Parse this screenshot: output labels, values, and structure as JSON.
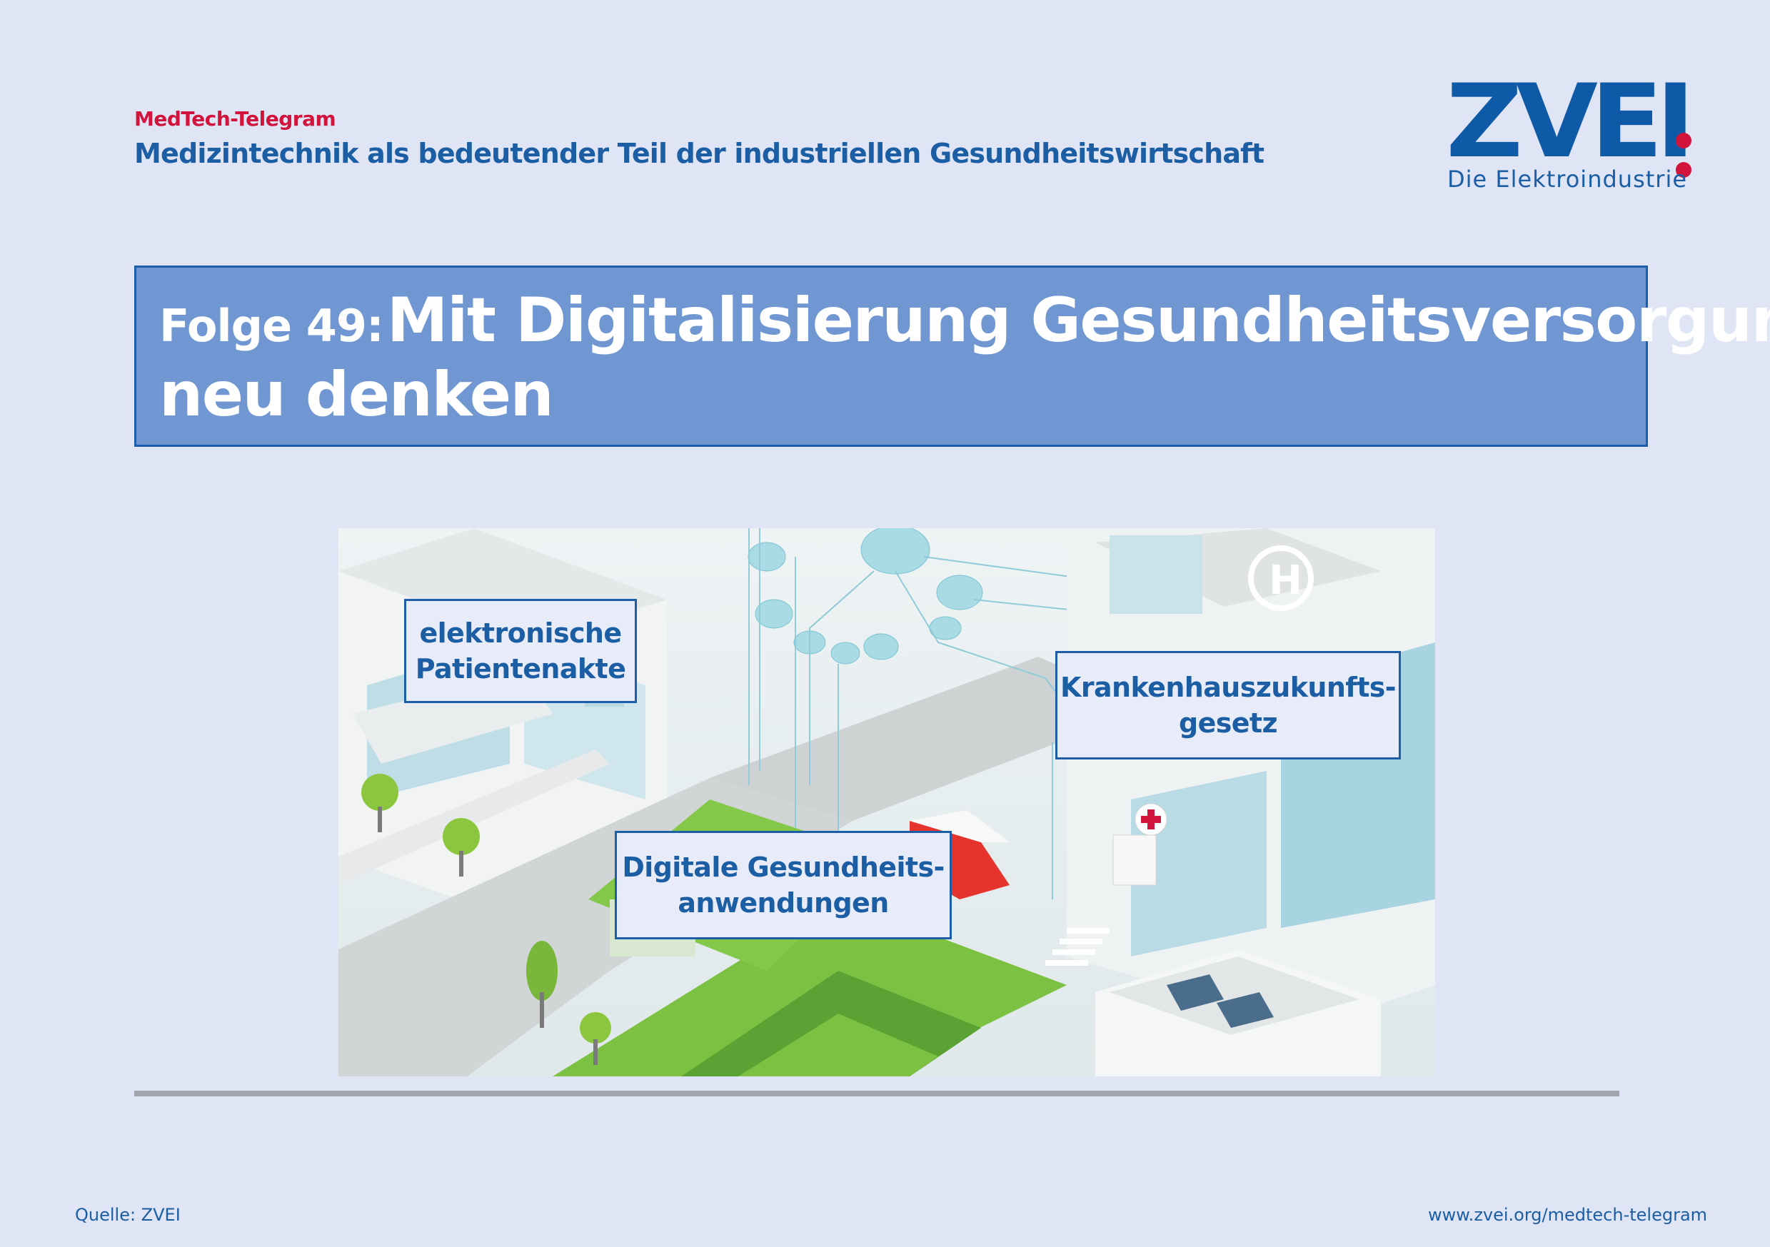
{
  "header": {
    "kicker": "MedTech-Telegram",
    "subtitle": "Medizintechnik als bedeutender Teil der industriellen Gesundheitswirtschaft"
  },
  "logo": {
    "word": "ZVEI",
    "tagline": "Die Elektroindustrie"
  },
  "title": {
    "prefix": "Folge 49:",
    "main": "Mit Digitalisierung Gesundheitsversorgung",
    "line2": "neu denken"
  },
  "callouts": {
    "epa": [
      "elektronische",
      "Patientenakte"
    ],
    "khzg": [
      "Krankenhauszukunfts-",
      "gesetz"
    ],
    "diga": [
      "Digitale Gesundheits-",
      "anwendungen"
    ]
  },
  "footer": {
    "source": "Quelle: ZVEI",
    "url": "www.zvei.org/medtech-telegram"
  },
  "colors": {
    "background": "#dfe5f5",
    "brand_blue": "#1c5ea4",
    "brand_red": "#d2143c",
    "title_box": "#7097d1"
  },
  "icons": {
    "illustration": "isometric-digital-health-city-illustration",
    "hospital_cross": "red-cross-icon",
    "helipad": "helipad-h-icon",
    "clouds": "data-cloud-icon"
  }
}
